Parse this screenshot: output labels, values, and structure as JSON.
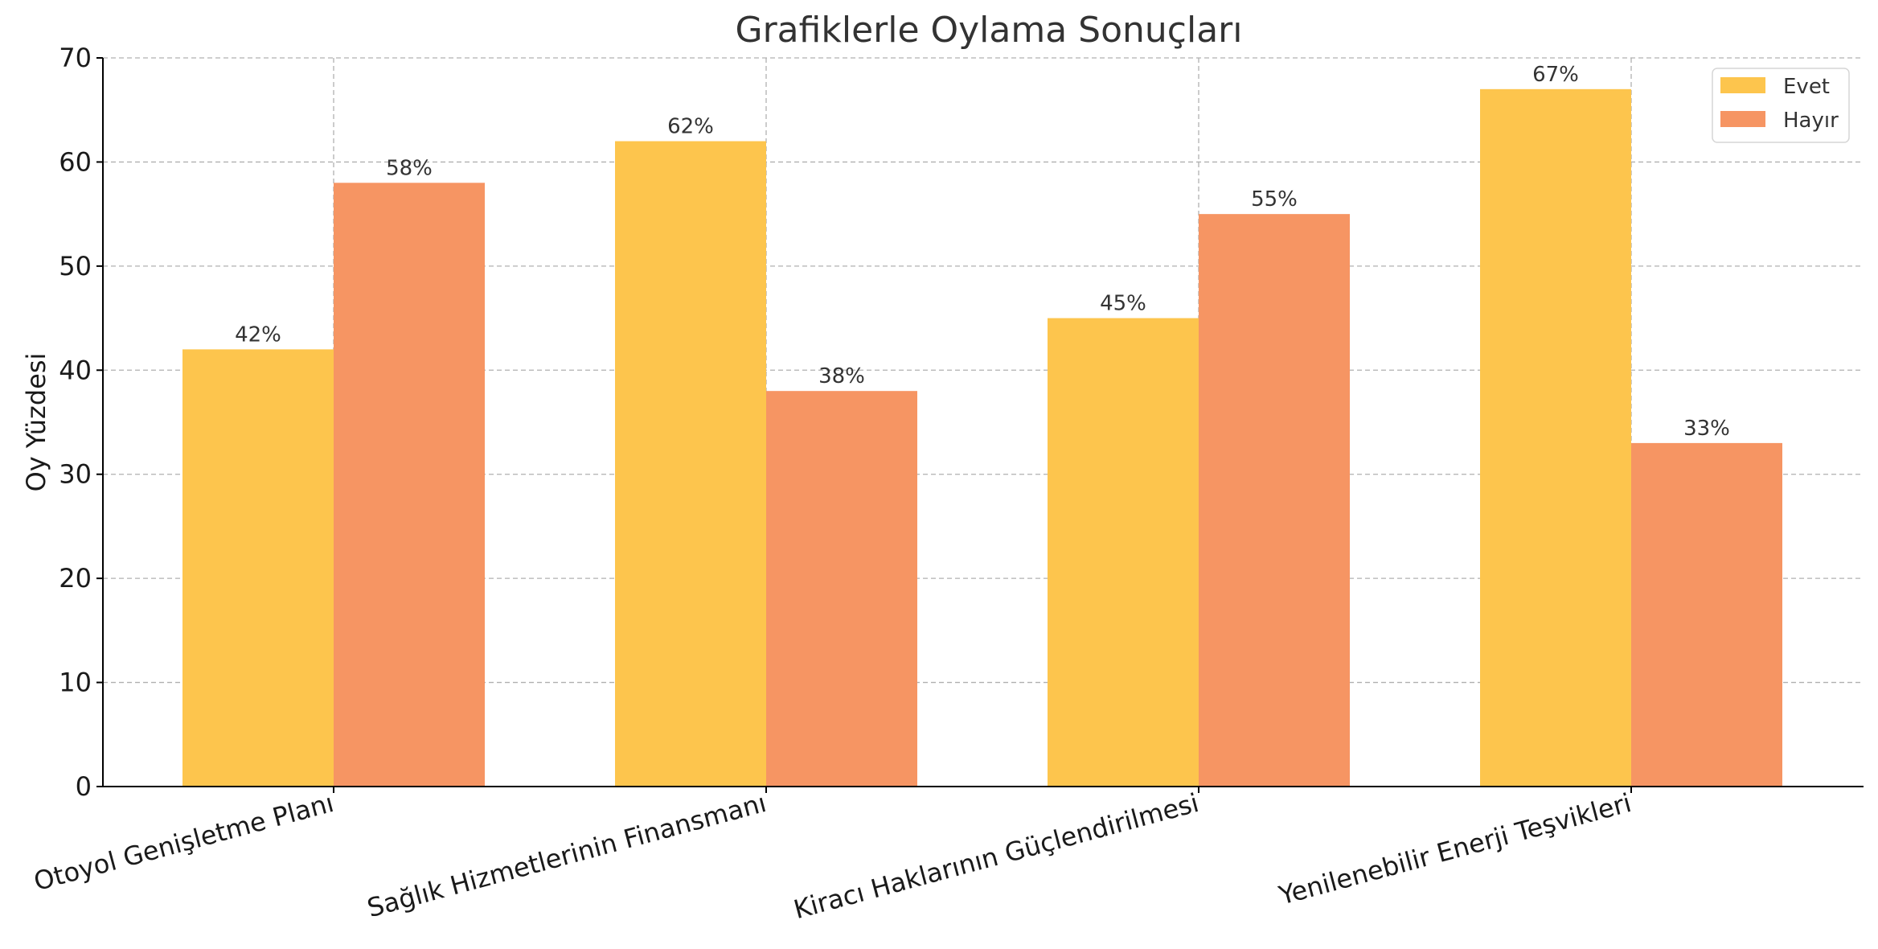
{
  "chart_data": {
    "type": "bar",
    "title": "Grafiklerle Oylama Sonuçları",
    "xlabel": "",
    "ylabel": "Oy Yüzdesi",
    "ylim": [
      0,
      70
    ],
    "yticks": [
      "0",
      "10",
      "20",
      "30",
      "40",
      "50",
      "60",
      "70"
    ],
    "categories": [
      "Otoyol Genişletme Planı",
      "Sağlık Hizmetlerinin Finansmanı",
      "Kiracı Haklarının Güçlendirilmesi",
      "Yenilenebilir Enerji Teşvikleri"
    ],
    "series": [
      {
        "name": "Evet",
        "color": "#fdc54d",
        "values": [
          42,
          62,
          45,
          67
        ],
        "labels": [
          "42%",
          "62%",
          "45%",
          "67%"
        ]
      },
      {
        "name": "Hayır",
        "color": "#f69563",
        "values": [
          58,
          38,
          55,
          33
        ],
        "labels": [
          "58%",
          "38%",
          "55%",
          "33%"
        ]
      }
    ],
    "grid": true,
    "legend_position": "top-right"
  }
}
